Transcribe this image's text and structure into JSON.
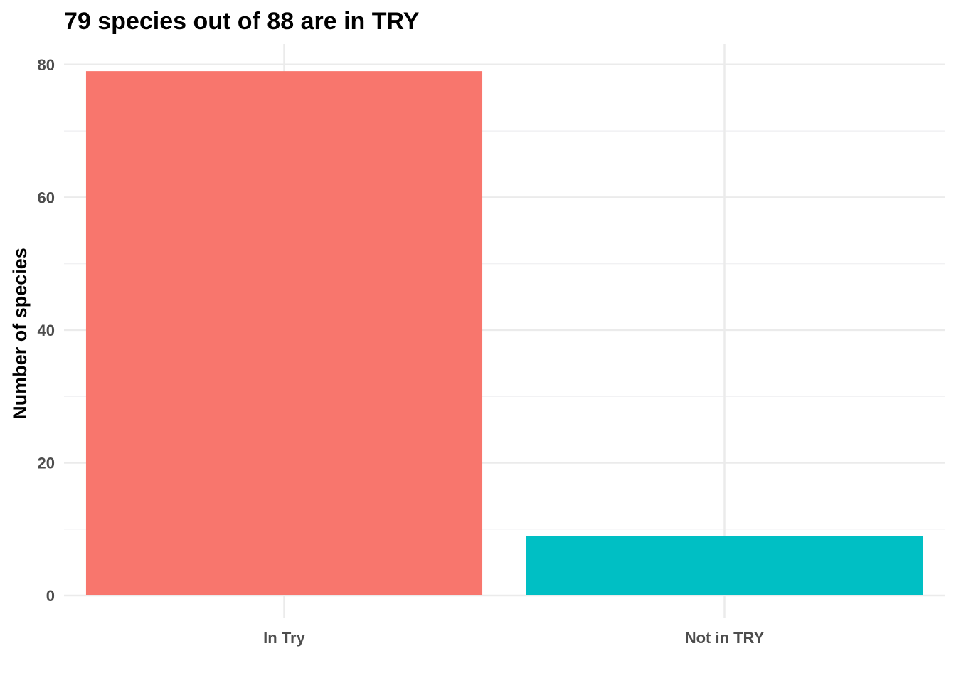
{
  "chart_data": {
    "type": "bar",
    "title": "79 species out of 88 are in TRY",
    "xlabel": "",
    "ylabel": "Number of species",
    "categories": [
      "In Try",
      "Not in TRY"
    ],
    "values": [
      79,
      9
    ],
    "colors": [
      "#F8766D",
      "#00BFC4"
    ],
    "ylim": [
      0,
      82.5
    ],
    "yticks": [
      0,
      20,
      40,
      60,
      80
    ],
    "grid": true,
    "legend": "none"
  }
}
